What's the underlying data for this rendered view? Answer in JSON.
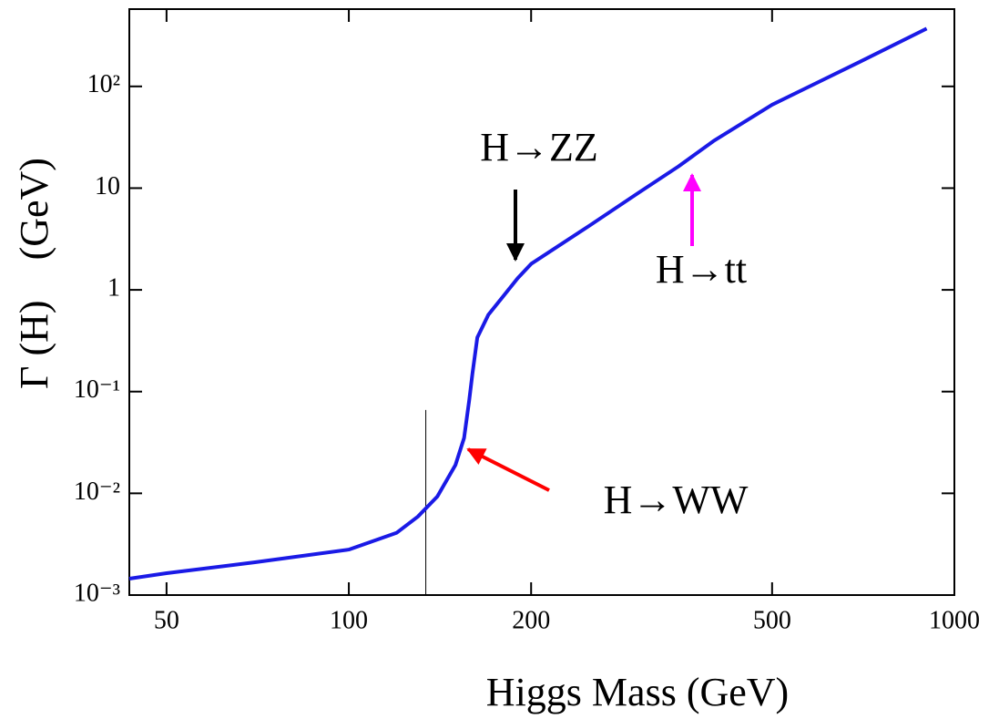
{
  "chart_data": {
    "type": "line",
    "x_label": "Higgs Mass (GeV)",
    "y_label": "Γ (H)    (GeV)",
    "xscale": "log",
    "yscale": "log",
    "xlim": [
      43.4,
      1000
    ],
    "ylim": [
      0.001,
      575
    ],
    "xticks": [
      50,
      100,
      200,
      500,
      1000
    ],
    "yticks": [
      {
        "value": 0.001,
        "label": "10⁻³"
      },
      {
        "value": 0.01,
        "label": "10⁻²"
      },
      {
        "value": 0.1,
        "label": "10⁻¹"
      },
      1,
      10,
      {
        "value": 100,
        "label": "10²"
      }
    ],
    "series": [
      {
        "color": "#1a1ae6",
        "x": [
          43.4,
          50,
          70,
          100,
          120,
          130,
          140,
          150,
          155,
          158,
          160,
          163,
          170,
          180,
          190,
          200,
          250,
          300,
          350,
          400,
          500,
          700,
          900
        ],
        "values": [
          0.00145,
          0.00164,
          0.0021,
          0.0028,
          0.0041,
          0.0059,
          0.0093,
          0.019,
          0.035,
          0.081,
          0.15,
          0.34,
          0.57,
          0.87,
          1.3,
          1.8,
          4.3,
          8.9,
          16.3,
          29,
          66,
          176,
          370
        ]
      }
    ],
    "vline": {
      "x": 134,
      "y": [
        0.001,
        0.066
      ],
      "color": "#000000"
    },
    "annotations": [
      {
        "text": "H→ZZ",
        "color": "#000000"
      },
      {
        "text": "H→tt",
        "color": "#ff00ff"
      },
      {
        "text": "H→WW",
        "color": "#ff0000"
      }
    ]
  }
}
